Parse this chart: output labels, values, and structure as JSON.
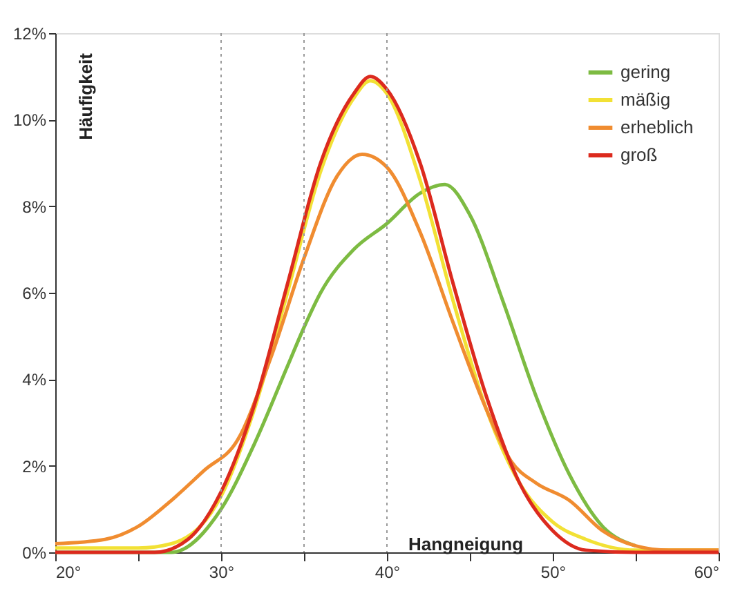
{
  "chart_data": {
    "type": "line",
    "xlabel": "Hangneigung",
    "ylabel": "Häufigkeit",
    "xlim": [
      20,
      60
    ],
    "ylim": [
      0,
      12
    ],
    "xticks": [
      {
        "value": 20,
        "label": "20°"
      },
      {
        "value": 25,
        "label": null
      },
      {
        "value": 30,
        "label": "30°"
      },
      {
        "value": 35,
        "label": null
      },
      {
        "value": 40,
        "label": "40°"
      },
      {
        "value": 45,
        "label": null
      },
      {
        "value": 50,
        "label": "50°"
      },
      {
        "value": 55,
        "label": null
      },
      {
        "value": 60,
        "label": "60°"
      }
    ],
    "yticks": [
      {
        "value": 0,
        "label": "0%"
      },
      {
        "value": 2,
        "label": "2%"
      },
      {
        "value": 4,
        "label": "4%"
      },
      {
        "value": 6,
        "label": "6%"
      },
      {
        "value": 8,
        "label": "8%"
      },
      {
        "value": 10,
        "label": "10%"
      },
      {
        "value": 12,
        "label": "12%"
      }
    ],
    "grid": false,
    "legend": "top right",
    "marker": "none",
    "line_style": "solid",
    "ref_lines": [
      {
        "axis": "x",
        "value": 30,
        "label": null,
        "color": "#9a9a9a",
        "line_style": "dotted"
      },
      {
        "axis": "x",
        "value": 35,
        "label": null,
        "color": "#9a9a9a",
        "line_style": "dotted"
      },
      {
        "axis": "x",
        "value": 40,
        "label": null,
        "color": "#9a9a9a",
        "line_style": "dotted"
      }
    ],
    "series": [
      {
        "name": "gering",
        "color": "#7dbb42",
        "x": [
          20,
          27,
          30,
          32,
          34,
          35,
          36,
          38,
          40,
          42,
          43.5,
          45,
          47,
          49,
          51,
          53,
          55
        ],
        "values": [
          0,
          0,
          1.0,
          2.5,
          4.3,
          5.2,
          6.0,
          7.0,
          7.6,
          8.3,
          8.5,
          7.8,
          5.8,
          3.6,
          1.8,
          0.6,
          0.15
        ]
      },
      {
        "name": "mäßig",
        "color": "#f2e135",
        "x": [
          20,
          25,
          27,
          30,
          32,
          34,
          36,
          38,
          39,
          40,
          42,
          44,
          46,
          48,
          50,
          52,
          55,
          60
        ],
        "values": [
          0.1,
          0.1,
          0.2,
          1.3,
          3.3,
          6.0,
          8.8,
          10.5,
          10.9,
          10.6,
          8.6,
          5.8,
          3.3,
          1.6,
          0.7,
          0.3,
          0.05,
          0.05
        ]
      },
      {
        "name": "erheblich",
        "color": "#f08c30",
        "x": [
          20,
          23,
          25,
          27,
          29,
          31,
          33,
          35,
          37,
          38.5,
          40,
          42,
          44,
          46,
          47.5,
          49,
          51,
          53,
          55,
          57,
          60
        ],
        "values": [
          0.2,
          0.3,
          0.6,
          1.2,
          1.9,
          2.6,
          4.5,
          6.8,
          8.7,
          9.2,
          8.9,
          7.4,
          5.3,
          3.3,
          2.1,
          1.6,
          1.2,
          0.5,
          0.15,
          0.05,
          0.05
        ]
      },
      {
        "name": "groß",
        "color": "#dc2a1e",
        "x": [
          20,
          26,
          28,
          30,
          32,
          34,
          36,
          38,
          39,
          40,
          42,
          44,
          46,
          48,
          50,
          52,
          55,
          60
        ],
        "values": [
          0,
          0,
          0.3,
          1.4,
          3.4,
          6.2,
          9.0,
          10.6,
          11.0,
          10.7,
          9.0,
          6.2,
          3.6,
          1.6,
          0.5,
          0.05,
          0,
          0
        ]
      }
    ]
  }
}
